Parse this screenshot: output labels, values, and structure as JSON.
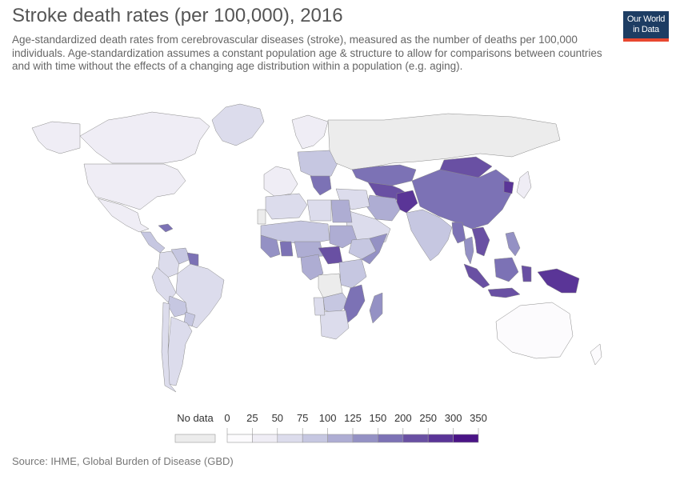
{
  "title": "Stroke death rates (per 100,000), 2016",
  "subtitle": "Age-standardized death rates from cerebrovascular diseases (stroke), measured as the number of deaths per 100,000 individuals. Age-standardization assumes a constant population age & structure to allow for comparisons between countries and with time without the effects of a changing age distribution within a population (e.g. aging).",
  "logo": {
    "line1": "Our World",
    "line2": "in Data",
    "bg": "#1d3d63",
    "accent": "#e8472f"
  },
  "source": "Source: IHME, Global Burden of Disease (GBD)",
  "legend": {
    "no_data_label": "No data",
    "no_data_color": "#ececec",
    "ticks": [
      "0",
      "25",
      "50",
      "75",
      "100",
      "125",
      "150",
      "200",
      "250",
      "300",
      "350"
    ],
    "colors": [
      "#fcfbfd",
      "#efedf5",
      "#dcdcec",
      "#c6c7e1",
      "#aeadd3",
      "#9491c4",
      "#7c72b5",
      "#6950a3",
      "#5a3597",
      "#4a1486"
    ]
  },
  "map_data": {
    "type": "choropleth",
    "metric": "Stroke death rates (per 100,000), 2016",
    "regions": [
      {
        "name": "Canada",
        "bin": 1
      },
      {
        "name": "Alaska",
        "bin": 1
      },
      {
        "name": "Greenland",
        "bin": 2
      },
      {
        "name": "United States",
        "bin": 1
      },
      {
        "name": "Mexico",
        "bin": 1
      },
      {
        "name": "Central America",
        "bin": 3
      },
      {
        "name": "Caribbean",
        "bin": 6
      },
      {
        "name": "Colombia",
        "bin": 2
      },
      {
        "name": "Venezuela",
        "bin": 3
      },
      {
        "name": "Guyana",
        "bin": 6
      },
      {
        "name": "Brazil",
        "bin": 2
      },
      {
        "name": "Peru",
        "bin": 2
      },
      {
        "name": "Bolivia",
        "bin": 3
      },
      {
        "name": "Paraguay",
        "bin": 3
      },
      {
        "name": "Argentina",
        "bin": 2
      },
      {
        "name": "Chile",
        "bin": 2
      },
      {
        "name": "Western Europe",
        "bin": 1
      },
      {
        "name": "Scandinavia",
        "bin": 1
      },
      {
        "name": "Eastern Europe",
        "bin": 3
      },
      {
        "name": "Balkans",
        "bin": 6
      },
      {
        "name": "Russia",
        "bin": -1
      },
      {
        "name": "Kazakhstan",
        "bin": 6
      },
      {
        "name": "Central Asia",
        "bin": 7
      },
      {
        "name": "Afghanistan",
        "bin": 8
      },
      {
        "name": "Iran",
        "bin": 4
      },
      {
        "name": "Middle East",
        "bin": 2
      },
      {
        "name": "Arabian Peninsula",
        "bin": 2
      },
      {
        "name": "Mongolia",
        "bin": 7
      },
      {
        "name": "China",
        "bin": 6
      },
      {
        "name": "North Korea",
        "bin": 8
      },
      {
        "name": "Japan",
        "bin": 1
      },
      {
        "name": "India",
        "bin": 3
      },
      {
        "name": "Myanmar",
        "bin": 6
      },
      {
        "name": "Thailand",
        "bin": 5
      },
      {
        "name": "Indochina",
        "bin": 7
      },
      {
        "name": "Philippines",
        "bin": 5
      },
      {
        "name": "Sumatra",
        "bin": 7
      },
      {
        "name": "Java",
        "bin": 7
      },
      {
        "name": "Borneo",
        "bin": 6
      },
      {
        "name": "Sulawesi",
        "bin": 7
      },
      {
        "name": "New Guinea",
        "bin": 8
      },
      {
        "name": "Australia",
        "bin": 0
      },
      {
        "name": "New Zealand",
        "bin": 0
      },
      {
        "name": "Western Sahara",
        "bin": -1
      },
      {
        "name": "Maghreb",
        "bin": 2
      },
      {
        "name": "Libya",
        "bin": 2
      },
      {
        "name": "Egypt",
        "bin": 4
      },
      {
        "name": "Sahel",
        "bin": 3
      },
      {
        "name": "West Africa",
        "bin": 5
      },
      {
        "name": "Ghana",
        "bin": 6
      },
      {
        "name": "Central Africa",
        "bin": 4
      },
      {
        "name": "Sudan",
        "bin": 4
      },
      {
        "name": "Ethiopia",
        "bin": 3
      },
      {
        "name": "Somalia",
        "bin": 5
      },
      {
        "name": "Congo Basin",
        "bin": 4
      },
      {
        "name": "Central African Rep.",
        "bin": 7
      },
      {
        "name": "East Africa",
        "bin": 3
      },
      {
        "name": "Angola",
        "bin": -1
      },
      {
        "name": "Zambia",
        "bin": 3
      },
      {
        "name": "Mozambique",
        "bin": 6
      },
      {
        "name": "Madagascar",
        "bin": 5
      },
      {
        "name": "Southern Africa",
        "bin": 2
      },
      {
        "name": "Namibia",
        "bin": 2
      }
    ]
  }
}
